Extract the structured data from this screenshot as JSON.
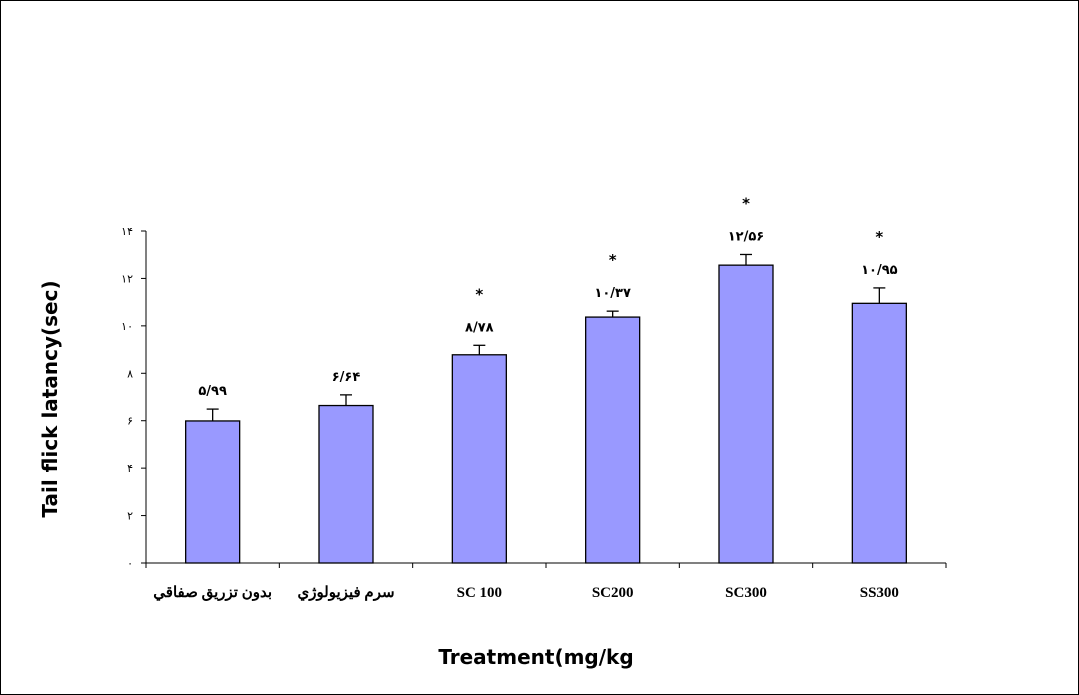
{
  "chart_data": {
    "type": "bar",
    "title": "",
    "xlabel": "Treatment(mg/kg",
    "ylabel": "Tail flick latancy(sec)",
    "ylim": [
      0,
      14
    ],
    "yticks": [
      0,
      2,
      4,
      6,
      8,
      10,
      12,
      14
    ],
    "ytick_labels": [
      "٠",
      "٢",
      "۴",
      "۶",
      "٨",
      "١٠",
      "١٢",
      "١۴"
    ],
    "categories": [
      "بدون تزريق صفاقي",
      "سرم فيزيولوژي",
      "SC 100",
      "SC200",
      "SC300",
      "SS300"
    ],
    "values": [
      5.99,
      6.64,
      8.78,
      10.37,
      12.56,
      10.95
    ],
    "errors": [
      0.5,
      0.45,
      0.4,
      0.25,
      0.45,
      0.65
    ],
    "value_labels": [
      "۵/۹۹",
      "۶/۶۴",
      "٨/٧٨",
      "١٠/٣٧",
      "١٢/۵۶",
      "١٠/٩۵"
    ],
    "significance": [
      "",
      "",
      "*",
      "*",
      "*",
      "*"
    ],
    "bar_color": "#9999ff",
    "bar_edge_color": "#000000",
    "grid": false,
    "legend": "none"
  }
}
